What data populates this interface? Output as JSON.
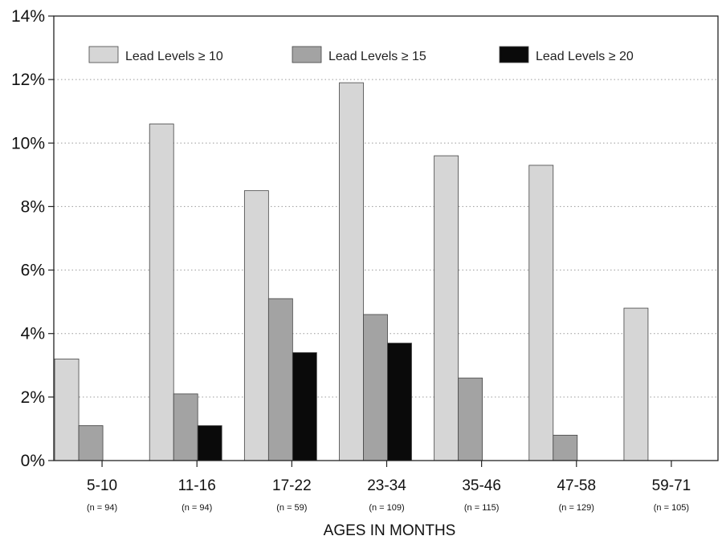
{
  "chart_data": {
    "type": "bar",
    "title": "",
    "xlabel": "AGES IN MONTHS",
    "ylabel": "",
    "ylim": [
      0,
      14
    ],
    "y_tick_values": [
      0,
      2,
      4,
      6,
      8,
      10,
      12,
      14
    ],
    "y_tick_labels": [
      "0%",
      "2%",
      "4%",
      "6%",
      "8%",
      "10%",
      "12%",
      "14%"
    ],
    "grid": "horizontal-dotted",
    "legend_position": "top",
    "categories": [
      "5-10",
      "11-16",
      "17-22",
      "23-34",
      "35-46",
      "47-58",
      "59-71"
    ],
    "category_n": [
      "(n = 94)",
      "(n = 94)",
      "(n = 59)",
      "(n = 109)",
      "(n = 115)",
      "(n = 129)",
      "(n = 105)"
    ],
    "series": [
      {
        "name": "Lead Levels ≥ 10",
        "color": "#d6d6d6",
        "values": [
          3.2,
          10.6,
          8.5,
          11.9,
          9.6,
          9.3,
          4.8
        ]
      },
      {
        "name": "Lead Levels ≥ 15",
        "color": "#a3a3a3",
        "values": [
          1.1,
          2.1,
          5.1,
          4.6,
          2.6,
          0.8,
          0
        ]
      },
      {
        "name": "Lead Levels ≥ 20",
        "color": "#0a0a0a",
        "values": [
          0,
          1.1,
          3.4,
          3.7,
          0,
          0,
          0
        ]
      }
    ]
  }
}
